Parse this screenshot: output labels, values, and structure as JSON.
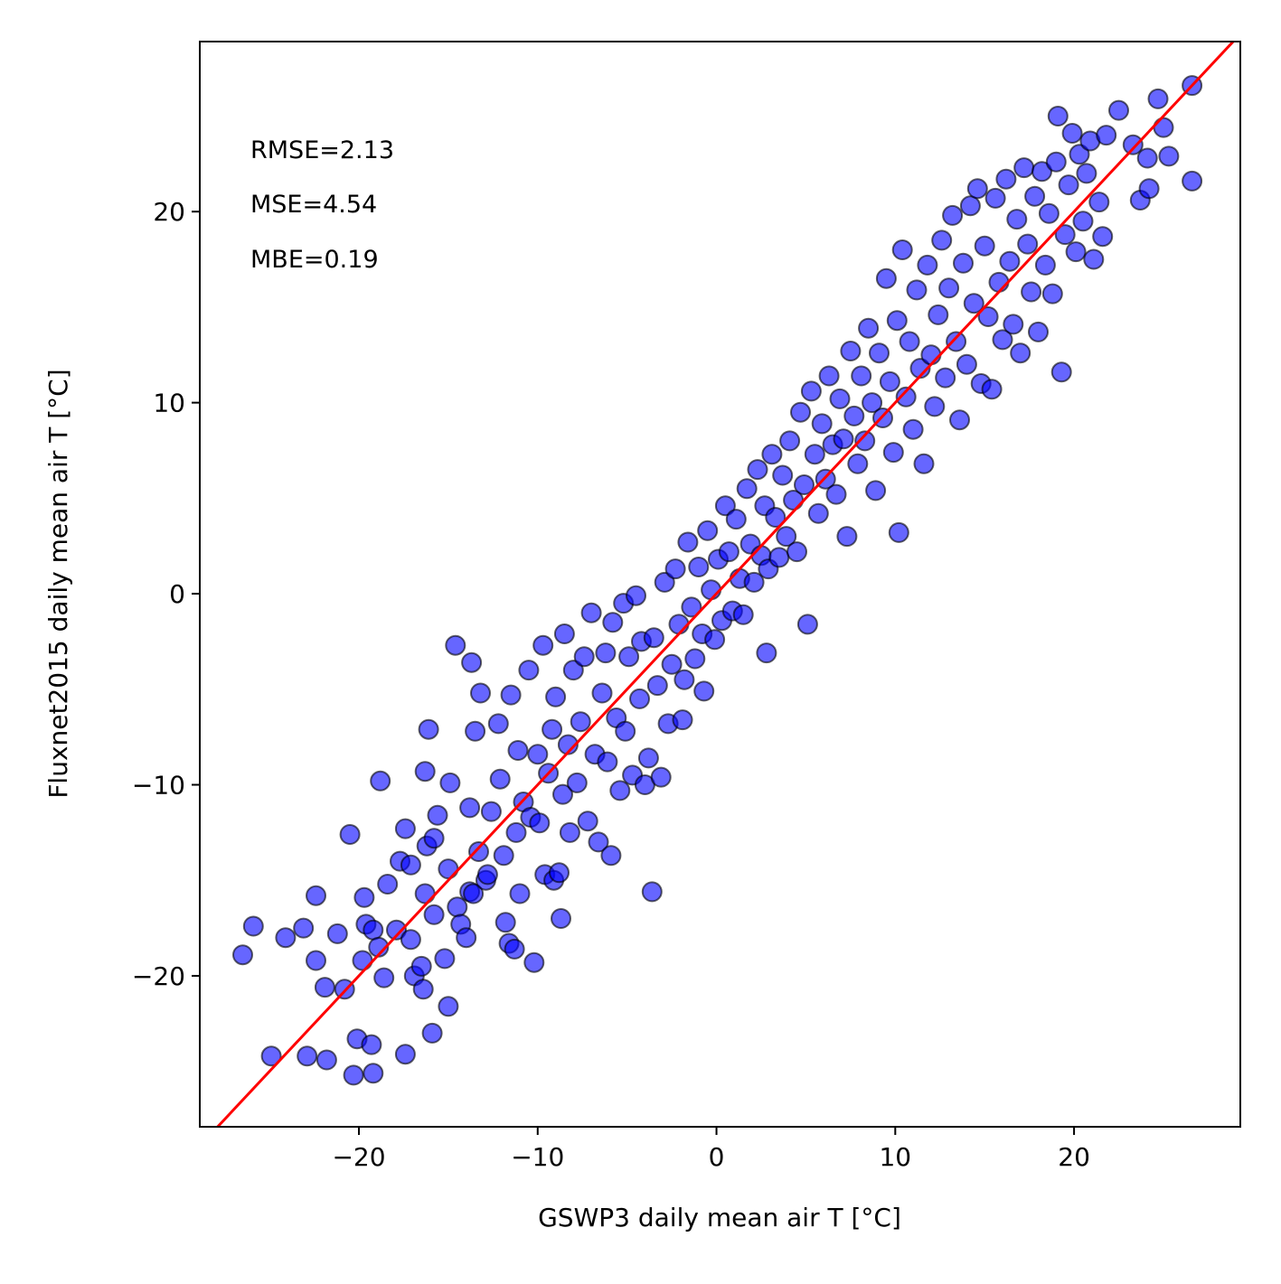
{
  "chart_data": {
    "type": "scatter",
    "title": "",
    "xlabel": "GSWP3 daily mean air T [°C]",
    "ylabel": "Fluxnet2015 daily mean air T [°C]",
    "xlim": [
      -28.9,
      29.3
    ],
    "ylim": [
      -27.9,
      28.9
    ],
    "grid": false,
    "xticks": [
      -20,
      -10,
      0,
      10,
      20
    ],
    "yticks": [
      -20,
      -10,
      0,
      10,
      20
    ],
    "xtick_labels": [
      "−20",
      "−10",
      "0",
      "10",
      "20"
    ],
    "ytick_labels": [
      "−20",
      "−10",
      "0",
      "10",
      "20"
    ],
    "annotations": [
      "RMSE=2.13",
      "MSE=4.54",
      "MBE=0.19"
    ],
    "colors": {
      "points": "#0000ff",
      "point_edge": "#000000",
      "line": "#ff0000"
    },
    "reference_line": {
      "label": "1:1 line",
      "slope": 1,
      "intercept": 0
    },
    "series": [
      {
        "points": [
          [
            -26.5,
            -18.9
          ],
          [
            -25.9,
            -17.4
          ],
          [
            -24.9,
            -24.2
          ],
          [
            -24.1,
            -18.0
          ],
          [
            -23.1,
            -17.5
          ],
          [
            -22.9,
            -24.2
          ],
          [
            -22.4,
            -15.8
          ],
          [
            -22.4,
            -19.2
          ],
          [
            -21.9,
            -20.6
          ],
          [
            -21.8,
            -24.4
          ],
          [
            -21.2,
            -17.8
          ],
          [
            -20.8,
            -20.7
          ],
          [
            -20.5,
            -12.6
          ],
          [
            -20.3,
            -25.2
          ],
          [
            -20.1,
            -23.3
          ],
          [
            -19.8,
            -19.2
          ],
          [
            -19.7,
            -15.9
          ],
          [
            -19.6,
            -17.3
          ],
          [
            -19.3,
            -23.6
          ],
          [
            -19.2,
            -25.1
          ],
          [
            -19.2,
            -17.6
          ],
          [
            -18.9,
            -18.5
          ],
          [
            -18.8,
            -9.8
          ],
          [
            -18.6,
            -20.1
          ],
          [
            -18.4,
            -15.2
          ],
          [
            -17.9,
            -17.6
          ],
          [
            -17.7,
            -14.0
          ],
          [
            -17.4,
            -12.3
          ],
          [
            -17.4,
            -24.1
          ],
          [
            -17.1,
            -18.1
          ],
          [
            -17.1,
            -14.2
          ],
          [
            -16.9,
            -20.0
          ],
          [
            -16.5,
            -19.5
          ],
          [
            -16.4,
            -20.7
          ],
          [
            -16.3,
            -15.7
          ],
          [
            -16.3,
            -9.3
          ],
          [
            -16.2,
            -13.2
          ],
          [
            -16.1,
            -7.1
          ],
          [
            -15.9,
            -23.0
          ],
          [
            -15.8,
            -16.8
          ],
          [
            -15.8,
            -12.8
          ],
          [
            -15.6,
            -11.6
          ],
          [
            -15.2,
            -19.1
          ],
          [
            -15.0,
            -21.6
          ],
          [
            -15.0,
            -14.4
          ],
          [
            -14.9,
            -9.9
          ],
          [
            -14.6,
            -2.7
          ],
          [
            -14.5,
            -16.4
          ],
          [
            -14.3,
            -17.3
          ],
          [
            -14.0,
            -18.0
          ],
          [
            -13.8,
            -15.6
          ],
          [
            -13.8,
            -11.2
          ],
          [
            -13.7,
            -3.6
          ],
          [
            -13.6,
            -15.7
          ],
          [
            -13.5,
            -7.2
          ],
          [
            -13.3,
            -13.5
          ],
          [
            -13.2,
            -5.2
          ],
          [
            -12.9,
            -15.0
          ],
          [
            -12.8,
            -14.7
          ],
          [
            -12.6,
            -11.4
          ],
          [
            -12.2,
            -6.8
          ],
          [
            -12.1,
            -9.7
          ],
          [
            -11.9,
            -13.7
          ],
          [
            -11.8,
            -17.2
          ],
          [
            -11.6,
            -18.3
          ],
          [
            -11.5,
            -5.3
          ],
          [
            -11.3,
            -18.6
          ],
          [
            -11.2,
            -12.5
          ],
          [
            -11.1,
            -8.2
          ],
          [
            -11.0,
            -15.7
          ],
          [
            -10.8,
            -10.9
          ],
          [
            -10.5,
            -4.0
          ],
          [
            -10.4,
            -11.7
          ],
          [
            -10.2,
            -19.3
          ],
          [
            -10.0,
            -8.4
          ],
          [
            -9.9,
            -12.0
          ],
          [
            -9.7,
            -2.7
          ],
          [
            -9.6,
            -14.7
          ],
          [
            -9.4,
            -9.4
          ],
          [
            -9.2,
            -7.1
          ],
          [
            -9.1,
            -15.0
          ],
          [
            -9.0,
            -5.4
          ],
          [
            -8.8,
            -14.6
          ],
          [
            -8.7,
            -17.0
          ],
          [
            -8.6,
            -10.5
          ],
          [
            -8.5,
            -2.1
          ],
          [
            -8.3,
            -7.9
          ],
          [
            -8.2,
            -12.5
          ],
          [
            -8.0,
            -4.0
          ],
          [
            -7.8,
            -9.9
          ],
          [
            -7.6,
            -6.7
          ],
          [
            -7.4,
            -3.3
          ],
          [
            -7.2,
            -11.9
          ],
          [
            -7.0,
            -1.0
          ],
          [
            -6.8,
            -8.4
          ],
          [
            -6.6,
            -13.0
          ],
          [
            -6.4,
            -5.2
          ],
          [
            -6.2,
            -3.1
          ],
          [
            -6.1,
            -8.8
          ],
          [
            -5.9,
            -13.7
          ],
          [
            -5.8,
            -1.5
          ],
          [
            -5.6,
            -6.5
          ],
          [
            -5.4,
            -10.3
          ],
          [
            -5.2,
            -0.5
          ],
          [
            -5.1,
            -7.2
          ],
          [
            -4.9,
            -3.3
          ],
          [
            -4.7,
            -9.5
          ],
          [
            -4.5,
            -0.1
          ],
          [
            -4.3,
            -5.5
          ],
          [
            -4.2,
            -2.5
          ],
          [
            -4.0,
            -10.0
          ],
          [
            -3.8,
            -8.6
          ],
          [
            -3.6,
            -15.6
          ],
          [
            -3.5,
            -2.3
          ],
          [
            -3.3,
            -4.8
          ],
          [
            -3.1,
            -9.6
          ],
          [
            -2.9,
            0.6
          ],
          [
            -2.7,
            -6.8
          ],
          [
            -2.5,
            -3.7
          ],
          [
            -2.3,
            1.3
          ],
          [
            -2.1,
            -1.6
          ],
          [
            -1.9,
            -6.6
          ],
          [
            -1.8,
            -4.5
          ],
          [
            -1.6,
            2.7
          ],
          [
            -1.4,
            -0.7
          ],
          [
            -1.2,
            -3.4
          ],
          [
            -1.0,
            1.4
          ],
          [
            -0.8,
            -2.1
          ],
          [
            -0.7,
            -5.1
          ],
          [
            -0.5,
            3.3
          ],
          [
            -0.3,
            0.2
          ],
          [
            -0.1,
            -2.4
          ],
          [
            0.1,
            1.8
          ],
          [
            0.3,
            -1.4
          ],
          [
            0.5,
            4.6
          ],
          [
            0.7,
            2.2
          ],
          [
            0.9,
            -0.9
          ],
          [
            1.1,
            3.9
          ],
          [
            1.3,
            0.8
          ],
          [
            1.5,
            -1.1
          ],
          [
            1.7,
            5.5
          ],
          [
            1.9,
            2.6
          ],
          [
            2.1,
            0.6
          ],
          [
            2.3,
            6.5
          ],
          [
            2.5,
            2.0
          ],
          [
            2.7,
            4.6
          ],
          [
            2.8,
            -3.1
          ],
          [
            2.9,
            1.3
          ],
          [
            3.1,
            7.3
          ],
          [
            3.3,
            4.0
          ],
          [
            3.5,
            1.9
          ],
          [
            3.7,
            6.2
          ],
          [
            3.9,
            3.0
          ],
          [
            4.1,
            8.0
          ],
          [
            4.3,
            4.9
          ],
          [
            4.5,
            2.2
          ],
          [
            4.7,
            9.5
          ],
          [
            4.9,
            5.7
          ],
          [
            5.1,
            -1.6
          ],
          [
            5.3,
            10.6
          ],
          [
            5.5,
            7.3
          ],
          [
            5.7,
            4.2
          ],
          [
            5.9,
            8.9
          ],
          [
            6.1,
            6.0
          ],
          [
            6.3,
            11.4
          ],
          [
            6.5,
            7.8
          ],
          [
            6.7,
            5.2
          ],
          [
            6.9,
            10.2
          ],
          [
            7.1,
            8.1
          ],
          [
            7.3,
            3.0
          ],
          [
            7.5,
            12.7
          ],
          [
            7.7,
            9.3
          ],
          [
            7.9,
            6.8
          ],
          [
            8.1,
            11.4
          ],
          [
            8.3,
            8.0
          ],
          [
            8.5,
            13.9
          ],
          [
            8.7,
            10.0
          ],
          [
            8.9,
            5.4
          ],
          [
            9.1,
            12.6
          ],
          [
            9.3,
            9.2
          ],
          [
            9.5,
            16.5
          ],
          [
            9.7,
            11.1
          ],
          [
            9.9,
            7.4
          ],
          [
            10.1,
            14.3
          ],
          [
            10.2,
            3.2
          ],
          [
            10.4,
            18.0
          ],
          [
            10.6,
            10.3
          ],
          [
            10.8,
            13.2
          ],
          [
            11.0,
            8.6
          ],
          [
            11.2,
            15.9
          ],
          [
            11.4,
            11.8
          ],
          [
            11.6,
            6.8
          ],
          [
            11.8,
            17.2
          ],
          [
            12.0,
            12.5
          ],
          [
            12.2,
            9.8
          ],
          [
            12.4,
            14.6
          ],
          [
            12.6,
            18.5
          ],
          [
            12.8,
            11.3
          ],
          [
            13.0,
            16.0
          ],
          [
            13.2,
            19.8
          ],
          [
            13.4,
            13.2
          ],
          [
            13.6,
            9.1
          ],
          [
            13.8,
            17.3
          ],
          [
            14.0,
            12.0
          ],
          [
            14.2,
            20.3
          ],
          [
            14.4,
            15.2
          ],
          [
            14.6,
            21.2
          ],
          [
            14.8,
            11.0
          ],
          [
            15.0,
            18.2
          ],
          [
            15.2,
            14.5
          ],
          [
            15.4,
            10.7
          ],
          [
            15.6,
            20.7
          ],
          [
            15.8,
            16.3
          ],
          [
            16.0,
            13.3
          ],
          [
            16.2,
            21.7
          ],
          [
            16.4,
            17.4
          ],
          [
            16.6,
            14.1
          ],
          [
            16.8,
            19.6
          ],
          [
            17.0,
            12.6
          ],
          [
            17.2,
            22.3
          ],
          [
            17.4,
            18.3
          ],
          [
            17.6,
            15.8
          ],
          [
            17.8,
            20.8
          ],
          [
            18.0,
            13.7
          ],
          [
            18.2,
            22.1
          ],
          [
            18.4,
            17.2
          ],
          [
            18.6,
            19.9
          ],
          [
            18.8,
            15.7
          ],
          [
            19.0,
            22.6
          ],
          [
            19.1,
            25.0
          ],
          [
            19.3,
            11.6
          ],
          [
            19.5,
            18.8
          ],
          [
            19.7,
            21.4
          ],
          [
            19.9,
            24.1
          ],
          [
            20.1,
            17.9
          ],
          [
            20.3,
            23.0
          ],
          [
            20.5,
            19.5
          ],
          [
            20.7,
            22.0
          ],
          [
            20.9,
            23.7
          ],
          [
            21.1,
            17.5
          ],
          [
            21.4,
            20.5
          ],
          [
            21.6,
            18.7
          ],
          [
            21.8,
            24.0
          ],
          [
            22.5,
            25.3
          ],
          [
            23.3,
            23.5
          ],
          [
            23.7,
            20.6
          ],
          [
            24.1,
            22.8
          ],
          [
            24.2,
            21.2
          ],
          [
            24.7,
            25.9
          ],
          [
            25.0,
            24.4
          ],
          [
            25.3,
            22.9
          ],
          [
            26.6,
            26.6
          ],
          [
            26.6,
            21.6
          ]
        ]
      }
    ]
  }
}
